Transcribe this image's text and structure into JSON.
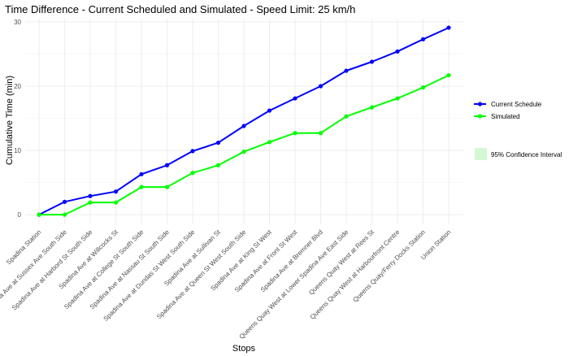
{
  "chart_data": {
    "type": "line",
    "title": "Time Difference - Current Scheduled and Simulated - Speed Limit: 25 km/h",
    "xlabel": "Stops",
    "ylabel": "Cumulative Time (min)",
    "ylim": [
      -1.5,
      30.5
    ],
    "yticks": [
      0,
      10,
      20,
      30
    ],
    "grid": true,
    "legend_position": "right",
    "categories": [
      "Spadina Station",
      "Spadina Ave at Sussex Ave South Side",
      "Spadina Ave at Harbord St South Side",
      "Spadina Ave at Willcocks St",
      "Spadina Ave at College St South Side",
      "Spadina Ave at Nassau St South Side",
      "Spadina Ave at Dundas St West South Side",
      "Spadina Ave at Sullivan St",
      "Spadina Ave at Queen St West South Side",
      "Spadina Ave at King St West",
      "Spadina Ave at Front St West",
      "Spadina Ave at Bremner Blvd",
      "Queens Quay West at Lower Spadina Ave East Side",
      "Queens Quay West at Rees St",
      "Queens Quay West at Harbourfront Centre",
      "Queens Quay/Ferry Docks Station",
      "Union Station"
    ],
    "series": [
      {
        "name": "Current Schedule",
        "color": "#0000ff",
        "values": [
          0,
          2,
          2.9,
          3.6,
          6.3,
          7.7,
          9.9,
          11.2,
          13.8,
          16.2,
          18.1,
          20,
          22.4,
          23.8,
          25.4,
          27.3,
          29.1
        ]
      },
      {
        "name": "Simulated",
        "color": "#00ff00",
        "values": [
          0,
          0,
          1.9,
          1.9,
          4.3,
          4.3,
          6.5,
          7.7,
          9.8,
          11.3,
          12.7,
          12.7,
          15.3,
          16.7,
          18.1,
          19.8,
          21.7
        ]
      }
    ],
    "confidence_interval": {
      "label": "95% Confidence Interval",
      "color": "#d4f7d4"
    }
  }
}
